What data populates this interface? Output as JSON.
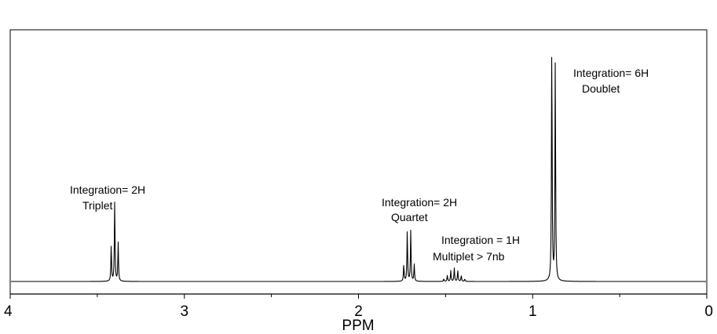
{
  "chart_data": {
    "type": "line",
    "title": "",
    "xlabel": "PPM",
    "ylabel": "",
    "xlim": [
      4,
      0
    ],
    "x_reversed": true,
    "grid": false,
    "x_ticks": [
      4,
      3,
      2,
      1,
      0
    ],
    "x_minor_ticks": [
      3.5,
      2.5,
      1.5,
      0.5
    ],
    "tick_labels": [
      "4",
      "3",
      "2",
      "1",
      "0"
    ],
    "baseline": 0,
    "ylim": [
      0,
      1.04
    ],
    "series": [
      {
        "peaks": [
          {
            "ppm": 3.42,
            "height": 0.15
          },
          {
            "ppm": 3.4,
            "height": 0.33
          },
          {
            "ppm": 3.38,
            "height": 0.16
          },
          {
            "ppm": 1.74,
            "height": 0.07
          },
          {
            "ppm": 1.72,
            "height": 0.21
          },
          {
            "ppm": 1.7,
            "height": 0.21
          },
          {
            "ppm": 1.68,
            "height": 0.07
          },
          {
            "ppm": 1.51,
            "height": 0.01
          },
          {
            "ppm": 1.49,
            "height": 0.025
          },
          {
            "ppm": 1.47,
            "height": 0.045
          },
          {
            "ppm": 1.45,
            "height": 0.055
          },
          {
            "ppm": 1.43,
            "height": 0.045
          },
          {
            "ppm": 1.41,
            "height": 0.025
          },
          {
            "ppm": 1.39,
            "height": 0.01
          },
          {
            "ppm": 0.89,
            "height": 1.0
          },
          {
            "ppm": 0.87,
            "height": 0.92
          }
        ]
      }
    ],
    "annotations": [
      {
        "id": "triplet",
        "lines": [
          "Integration= 2H",
          "Triplet"
        ]
      },
      {
        "id": "quartet",
        "lines": [
          "Integration= 2H",
          "Quartet"
        ]
      },
      {
        "id": "multiplet",
        "lines": [
          "Integration = 1H",
          "Multiplet > 7nb"
        ]
      },
      {
        "id": "doublet",
        "lines": [
          "Integration= 6H",
          "Doublet"
        ]
      }
    ]
  }
}
